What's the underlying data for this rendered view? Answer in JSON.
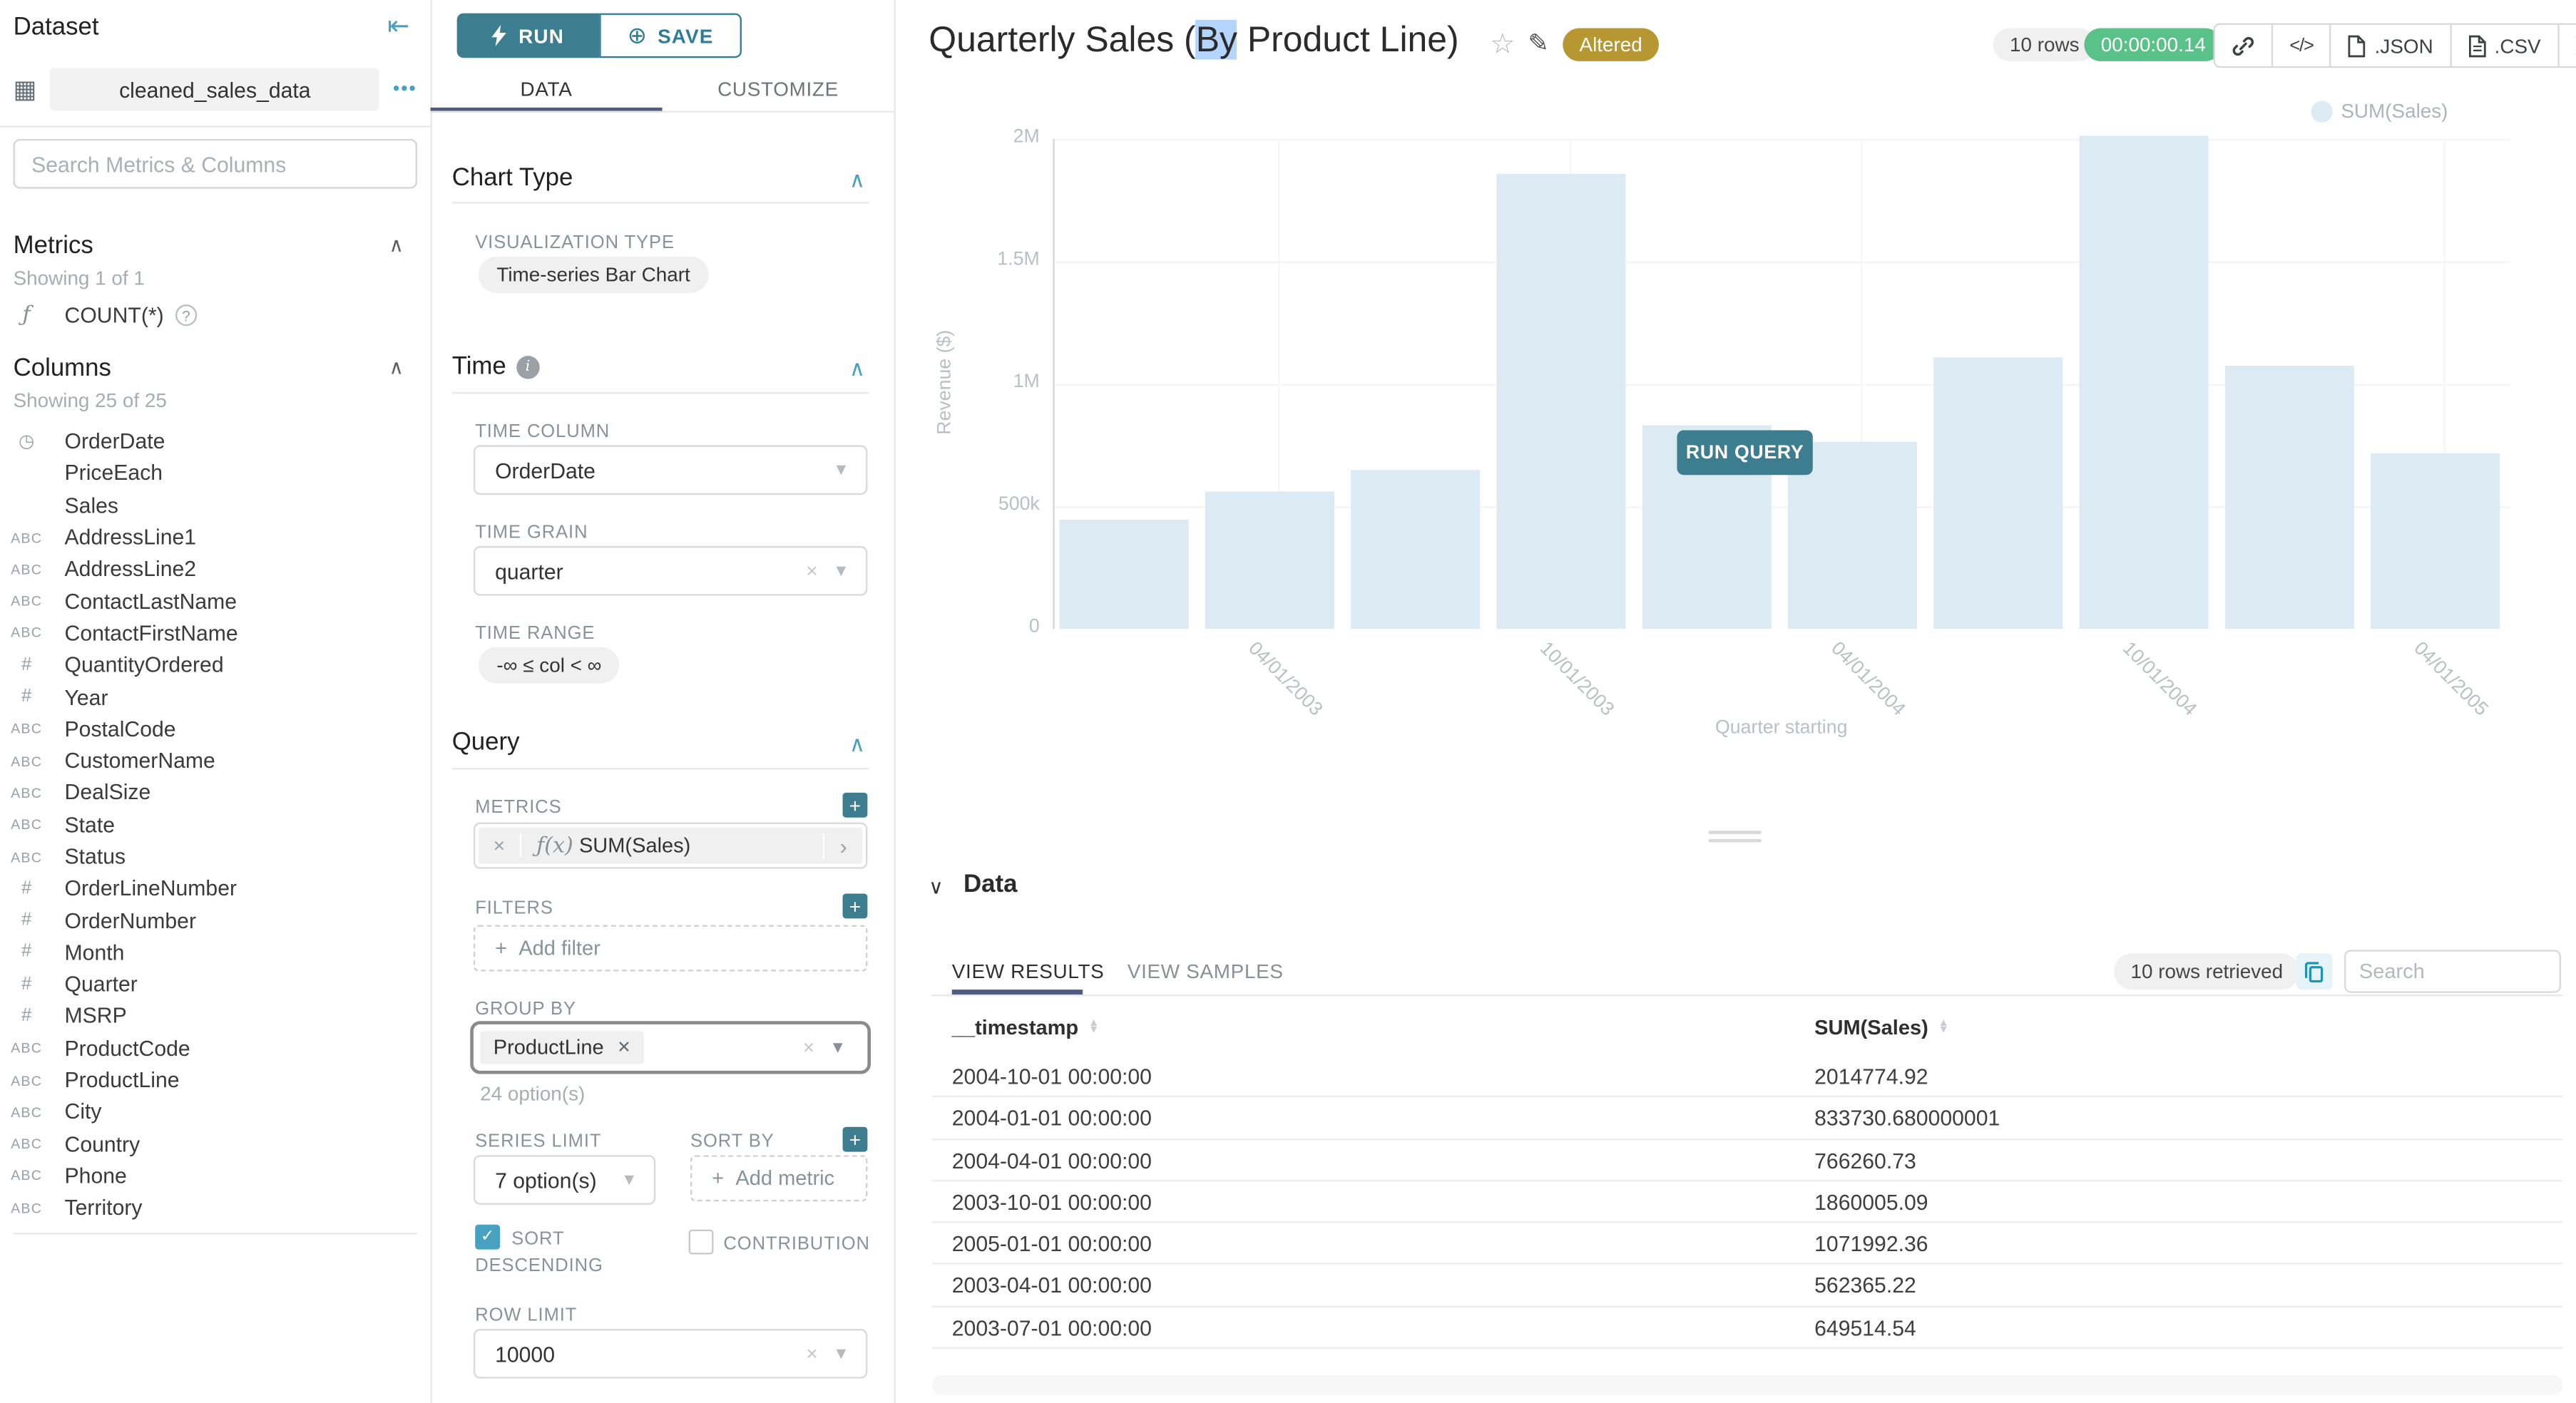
{
  "colors": {
    "accent": "#3D7D90",
    "accent_bright": "#48A1C1",
    "tab_ink": "#4F5B7E",
    "success_green": "#5AC189",
    "altered_gold": "#B79732",
    "bar_fill": "#DCEBF3",
    "selection_blue": "#B4D5FD",
    "pill_grey": "#F0F0F0"
  },
  "sidebar": {
    "title": "Dataset",
    "dataset_name": "cleaned_sales_data",
    "more_icon": "•••",
    "search_placeholder": "Search Metrics & Columns",
    "metrics": {
      "title": "Metrics",
      "showing": "Showing 1 of 1",
      "items": [
        {
          "icon": "function",
          "name": "COUNT(*)"
        }
      ]
    },
    "columns": {
      "title": "Columns",
      "showing": "Showing 25 of 25",
      "items": [
        {
          "icon": "clock",
          "name": "OrderDate"
        },
        {
          "icon": "none",
          "name": "PriceEach"
        },
        {
          "icon": "none",
          "name": "Sales"
        },
        {
          "icon": "abc",
          "name": "AddressLine1"
        },
        {
          "icon": "abc",
          "name": "AddressLine2"
        },
        {
          "icon": "abc",
          "name": "ContactLastName"
        },
        {
          "icon": "abc",
          "name": "ContactFirstName"
        },
        {
          "icon": "hash",
          "name": "QuantityOrdered"
        },
        {
          "icon": "hash",
          "name": "Year"
        },
        {
          "icon": "abc",
          "name": "PostalCode"
        },
        {
          "icon": "abc",
          "name": "CustomerName"
        },
        {
          "icon": "abc",
          "name": "DealSize"
        },
        {
          "icon": "abc",
          "name": "State"
        },
        {
          "icon": "abc",
          "name": "Status"
        },
        {
          "icon": "hash",
          "name": "OrderLineNumber"
        },
        {
          "icon": "hash",
          "name": "OrderNumber"
        },
        {
          "icon": "hash",
          "name": "Month"
        },
        {
          "icon": "hash",
          "name": "Quarter"
        },
        {
          "icon": "hash",
          "name": "MSRP"
        },
        {
          "icon": "abc",
          "name": "ProductCode"
        },
        {
          "icon": "abc",
          "name": "ProductLine"
        },
        {
          "icon": "abc",
          "name": "City"
        },
        {
          "icon": "abc",
          "name": "Country"
        },
        {
          "icon": "abc",
          "name": "Phone"
        },
        {
          "icon": "abc",
          "name": "Territory"
        }
      ]
    }
  },
  "controls": {
    "run_label": "RUN",
    "save_label": "SAVE",
    "tabs": [
      "DATA",
      "CUSTOMIZE"
    ],
    "chart_type": {
      "title": "Chart Type",
      "viz_label": "VISUALIZATION TYPE",
      "viz_value": "Time-series Bar Chart"
    },
    "time": {
      "title": "Time",
      "column_label": "TIME COLUMN",
      "column_value": "OrderDate",
      "grain_label": "TIME GRAIN",
      "grain_value": "quarter",
      "range_label": "TIME RANGE",
      "range_value": "-∞ ≤ col < ∞"
    },
    "query": {
      "title": "Query",
      "metrics_label": "METRICS",
      "metric_icon": "ƒ(x)",
      "metric_value": "SUM(Sales)",
      "filters_label": "FILTERS",
      "add_filter": "Add filter",
      "group_by_label": "GROUP BY",
      "group_by_tag": "ProductLine",
      "options_hint": "24 option(s)",
      "series_limit_label": "SERIES LIMIT",
      "series_limit_value": "7 option(s)",
      "sort_by_label": "SORT BY",
      "add_metric": "Add metric",
      "sort_descending_line1": "SORT",
      "sort_descending_line2": "DESCENDING",
      "contribution_label": "CONTRIBUTION",
      "row_limit_label": "ROW LIMIT",
      "row_limit_value": "10000"
    }
  },
  "header": {
    "title_prefix": "Quarterly Sales (",
    "title_selected": "By",
    "title_suffix": " Product Line)",
    "altered_badge": "Altered",
    "rows_badge": "10 rows",
    "timer": "00:00:00.14",
    "export_json": ".JSON",
    "export_csv": ".CSV"
  },
  "chart_data": {
    "type": "bar",
    "title": "Quarterly Sales (By Product Line)",
    "series_name": "SUM(Sales)",
    "x": [
      "2003-01-01",
      "2003-04-01",
      "2003-07-01",
      "2003-10-01",
      "2004-01-01",
      "2004-04-01",
      "2004-07-01",
      "2004-10-01",
      "2005-01-01",
      "2005-04-01"
    ],
    "values": [
      445094.69,
      562365.22,
      649514.54,
      1860005.09,
      833730.68,
      766260.73,
      1109396.27,
      2014774.92,
      1071992.36,
      719494.35
    ],
    "xlabel": "Quarter starting",
    "ylabel": "Revenue ($)",
    "ylim": [
      0,
      2000000
    ],
    "yticks": [
      "0",
      "500k",
      "1M",
      "1.5M",
      "2M"
    ],
    "xticks": [
      "04/01/2003",
      "10/01/2003",
      "04/01/2004",
      "10/01/2004",
      "04/01/2005"
    ],
    "legend_position": "top-right",
    "grid": true,
    "run_query_label": "RUN QUERY"
  },
  "data_panel": {
    "title": "Data",
    "tabs": [
      "VIEW RESULTS",
      "VIEW SAMPLES"
    ],
    "retrieved": "10 rows retrieved",
    "search_placeholder": "Search",
    "columns": [
      "__timestamp",
      "SUM(Sales)"
    ],
    "rows": [
      [
        "2004-10-01 00:00:00",
        "2014774.92"
      ],
      [
        "2004-01-01 00:00:00",
        "833730.680000001"
      ],
      [
        "2004-04-01 00:00:00",
        "766260.73"
      ],
      [
        "2003-10-01 00:00:00",
        "1860005.09"
      ],
      [
        "2005-01-01 00:00:00",
        "1071992.36"
      ],
      [
        "2003-04-01 00:00:00",
        "562365.22"
      ],
      [
        "2003-07-01 00:00:00",
        "649514.54"
      ]
    ]
  }
}
